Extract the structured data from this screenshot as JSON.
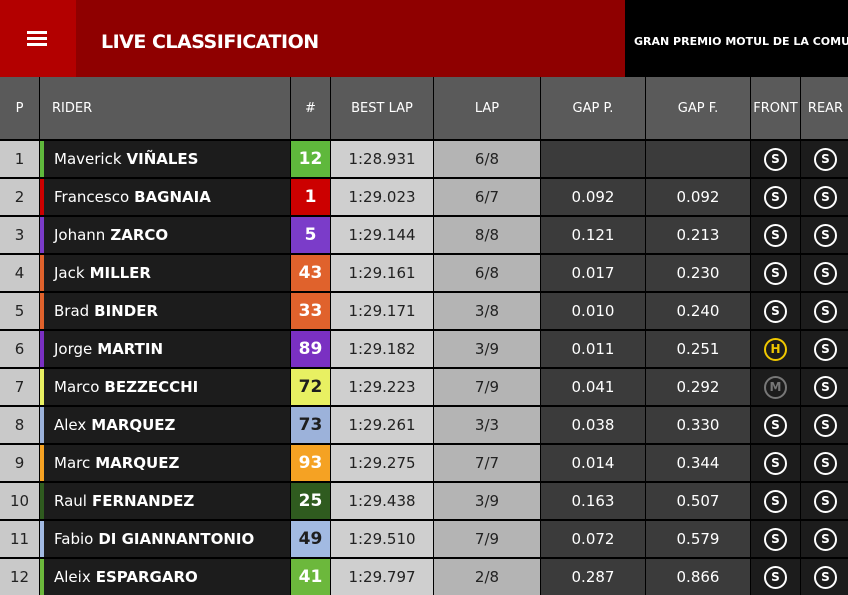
{
  "header": {
    "title": "LIVE CLASSIFICATION",
    "event": "GRAN PREMIO MOTUL DE LA COMUNITA"
  },
  "table": {
    "columns": [
      "P",
      "RIDER",
      "#",
      "BEST LAP",
      "LAP",
      "GAP P.",
      "GAP F.",
      "FRONT",
      "REAR"
    ],
    "rows": [
      {
        "pos": "1",
        "first": "Maverick",
        "last": "VIÑALES",
        "number": "12",
        "color": "#5fb83c",
        "text_color": "#ffffff",
        "best_lap": "1:28.931",
        "lap": "6/8",
        "gap_p": null,
        "gap_f": null,
        "front": "S",
        "rear": "S"
      },
      {
        "pos": "2",
        "first": "Francesco",
        "last": "BAGNAIA",
        "number": "1",
        "color": "#cc0000",
        "text_color": "#ffffff",
        "best_lap": "1:29.023",
        "lap": "6/7",
        "gap_p": "0.092",
        "gap_f": "0.092",
        "front": "S",
        "rear": "S"
      },
      {
        "pos": "3",
        "first": "Johann",
        "last": "ZARCO",
        "number": "5",
        "color": "#7b3cc9",
        "text_color": "#ffffff",
        "best_lap": "1:29.144",
        "lap": "8/8",
        "gap_p": "0.121",
        "gap_f": "0.213",
        "front": "S",
        "rear": "S"
      },
      {
        "pos": "4",
        "first": "Jack",
        "last": "MILLER",
        "number": "43",
        "color": "#e0622c",
        "text_color": "#ffffff",
        "best_lap": "1:29.161",
        "lap": "6/8",
        "gap_p": "0.017",
        "gap_f": "0.230",
        "front": "S",
        "rear": "S"
      },
      {
        "pos": "5",
        "first": "Brad",
        "last": "BINDER",
        "number": "33",
        "color": "#e0622c",
        "text_color": "#ffffff",
        "best_lap": "1:29.171",
        "lap": "3/8",
        "gap_p": "0.010",
        "gap_f": "0.240",
        "front": "S",
        "rear": "S"
      },
      {
        "pos": "6",
        "first": "Jorge",
        "last": "MARTIN",
        "number": "89",
        "color": "#7a30c2",
        "text_color": "#ffffff",
        "best_lap": "1:29.182",
        "lap": "3/9",
        "gap_p": "0.011",
        "gap_f": "0.251",
        "front": "H",
        "rear": "S"
      },
      {
        "pos": "7",
        "first": "Marco",
        "last": "BEZZECCHI",
        "number": "72",
        "color": "#e8f062",
        "text_color": "#1e1e1e",
        "best_lap": "1:29.223",
        "lap": "7/9",
        "gap_p": "0.041",
        "gap_f": "0.292",
        "front": "M",
        "rear": "S"
      },
      {
        "pos": "8",
        "first": "Alex",
        "last": "MARQUEZ",
        "number": "73",
        "color": "#9cb2da",
        "text_color": "#1e1e1e",
        "best_lap": "1:29.261",
        "lap": "3/3",
        "gap_p": "0.038",
        "gap_f": "0.330",
        "front": "S",
        "rear": "S"
      },
      {
        "pos": "9",
        "first": "Marc",
        "last": "MARQUEZ",
        "number": "93",
        "color": "#f5a223",
        "text_color": "#ffffff",
        "best_lap": "1:29.275",
        "lap": "7/7",
        "gap_p": "0.014",
        "gap_f": "0.344",
        "front": "S",
        "rear": "S"
      },
      {
        "pos": "10",
        "first": "Raul",
        "last": "FERNANDEZ",
        "number": "25",
        "color": "#2f5b1f",
        "text_color": "#ffffff",
        "best_lap": "1:29.438",
        "lap": "3/9",
        "gap_p": "0.163",
        "gap_f": "0.507",
        "front": "S",
        "rear": "S"
      },
      {
        "pos": "11",
        "first": "Fabio",
        "last": "DI GIANNANTONIO",
        "number": "49",
        "color": "#a2bae2",
        "text_color": "#1e1e1e",
        "best_lap": "1:29.510",
        "lap": "7/9",
        "gap_p": "0.072",
        "gap_f": "0.579",
        "front": "S",
        "rear": "S"
      },
      {
        "pos": "12",
        "first": "Aleix",
        "last": "ESPARGARO",
        "number": "41",
        "color": "#6cb83c",
        "text_color": "#ffffff",
        "best_lap": "1:29.797",
        "lap": "2/8",
        "gap_p": "0.287",
        "gap_f": "0.866",
        "front": "S",
        "rear": "S"
      }
    ]
  }
}
